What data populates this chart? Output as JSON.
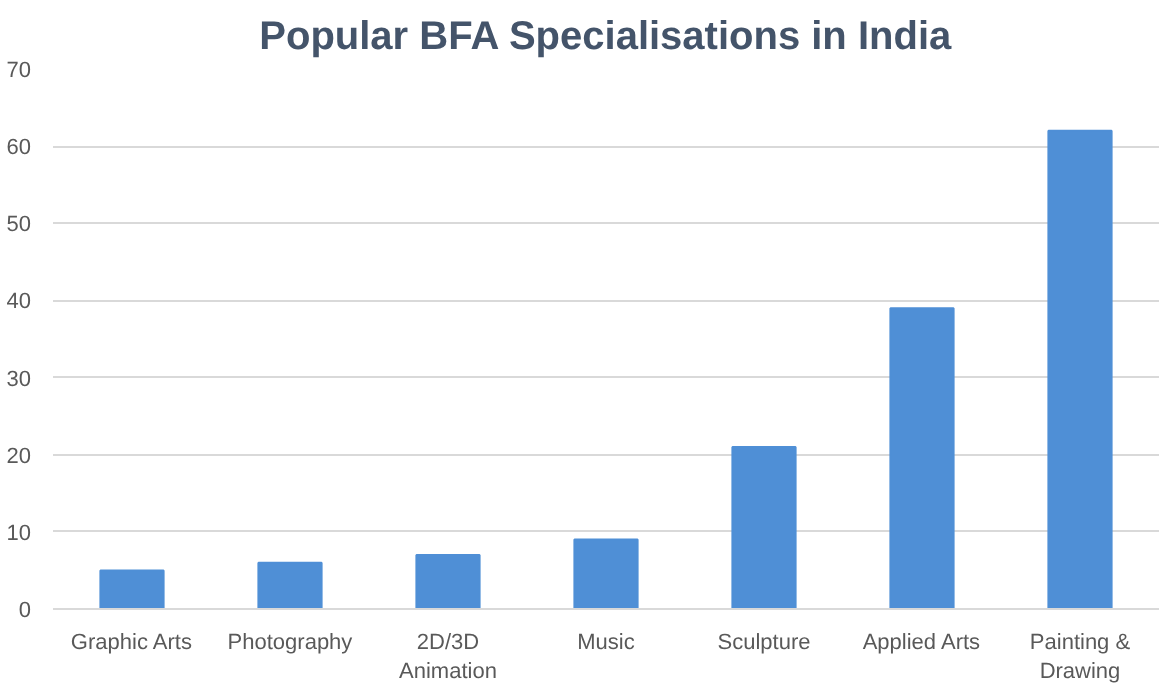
{
  "chart_data": {
    "type": "bar",
    "title": "Popular BFA Specialisations in India",
    "categories": [
      "Graphic Arts",
      "Photography",
      "2D/3D Animation",
      "Music",
      "Sculpture",
      "Applied Arts",
      "Painting & Drawing"
    ],
    "values": [
      5,
      6,
      7,
      9,
      21,
      39,
      62
    ],
    "color": "#4f8fd6",
    "ylim": [
      0,
      70
    ],
    "yticks": [
      0,
      10,
      20,
      30,
      40,
      50,
      60,
      70
    ],
    "grid": "y"
  }
}
